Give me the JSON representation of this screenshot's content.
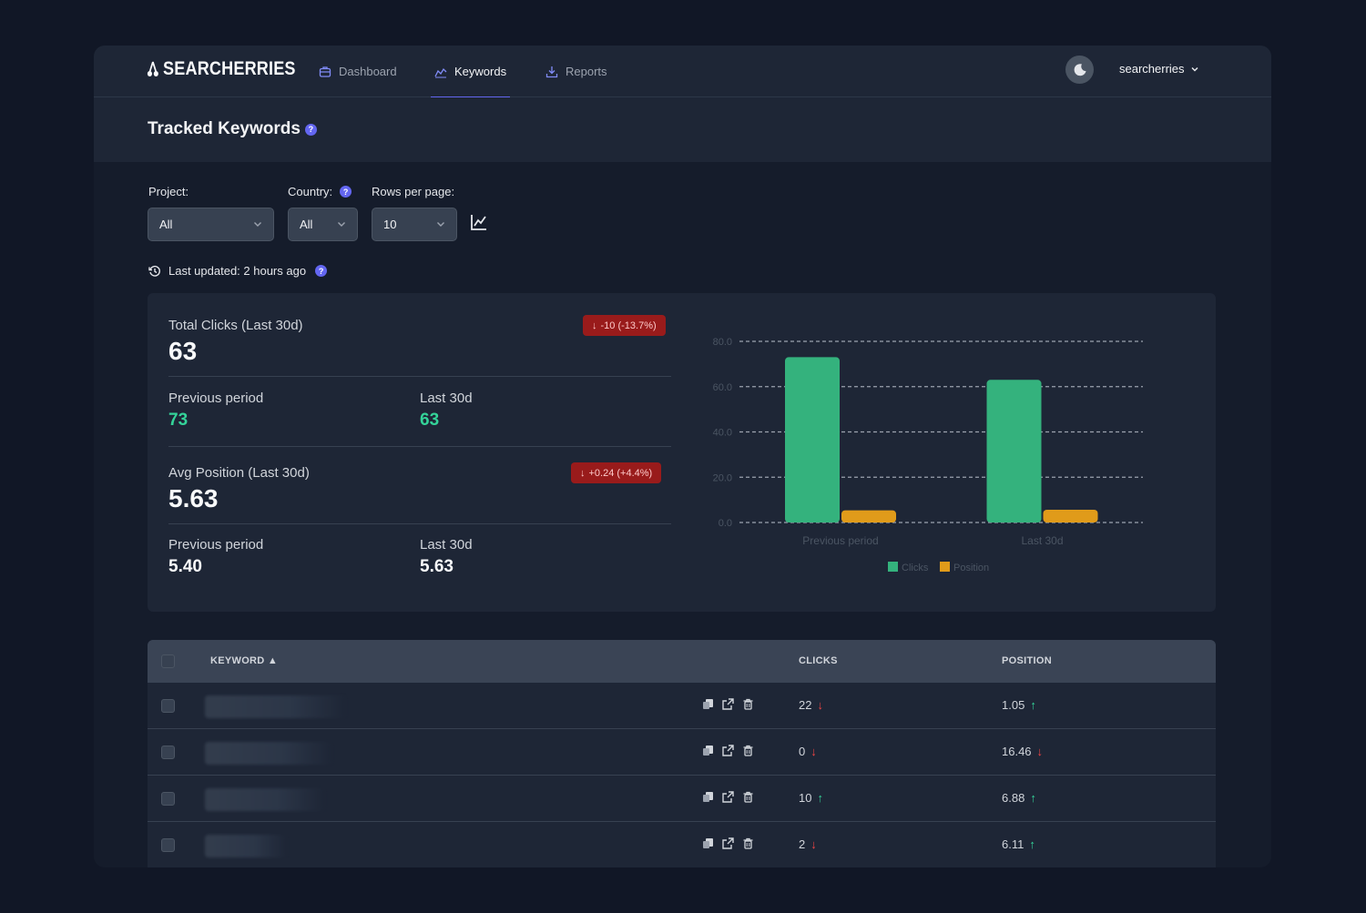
{
  "app": {
    "brand": "SEARCHERRIES",
    "nav": [
      {
        "label": "Dashboard",
        "icon": "briefcase-icon",
        "active": false
      },
      {
        "label": "Keywords",
        "icon": "trend-chart-icon",
        "active": true
      },
      {
        "label": "Reports",
        "icon": "download-tray-icon",
        "active": false
      }
    ],
    "user": {
      "name": "searcherries",
      "theme_icon": "moon-icon"
    }
  },
  "page": {
    "title": "Tracked Keywords",
    "help": "?"
  },
  "filters": {
    "project": {
      "label": "Project:",
      "value": "All"
    },
    "country": {
      "label": "Country:",
      "value": "All"
    },
    "rows": {
      "label": "Rows per page:",
      "value": "10"
    },
    "last_updated": "Last updated: 2 hours ago"
  },
  "stats": {
    "clicks": {
      "title": "Total Clicks (Last 30d)",
      "value": "63",
      "delta": "-10 (-13.7%)",
      "prev_label": "Previous period",
      "prev_value": "73",
      "last_label": "Last 30d",
      "last_value": "63"
    },
    "position": {
      "title": "Avg Position (Last 30d)",
      "value": "5.63",
      "delta": "+0.24 (+4.4%)",
      "prev_label": "Previous period",
      "prev_value": "5.40",
      "last_label": "Last 30d",
      "last_value": "5.63"
    }
  },
  "chart_data": {
    "type": "bar",
    "categories": [
      "Previous period",
      "Last 30d"
    ],
    "series": [
      {
        "name": "Clicks",
        "values": [
          73,
          63
        ],
        "color": "#34b27d"
      },
      {
        "name": "Position",
        "values": [
          5.4,
          5.63
        ],
        "color": "#e09b1a"
      }
    ],
    "yticks": [
      "0.0",
      "20.0",
      "40.0",
      "60.0",
      "80.0"
    ],
    "ylim": [
      0,
      80
    ],
    "grid": true,
    "legend": "bottom"
  },
  "table": {
    "headers": {
      "keyword": "KEYWORD ▲",
      "clicks": "CLICKS",
      "position": "POSITION"
    },
    "rows": [
      {
        "clicks": "22",
        "clicks_trend": "down",
        "position": "1.05",
        "position_trend": "up"
      },
      {
        "clicks": "0",
        "clicks_trend": "down",
        "position": "16.46",
        "position_trend": "down"
      },
      {
        "clicks": "10",
        "clicks_trend": "up",
        "position": "6.88",
        "position_trend": "up"
      },
      {
        "clicks": "2",
        "clicks_trend": "down",
        "position": "6.11",
        "position_trend": "up"
      }
    ],
    "arrows": {
      "up": "↑",
      "down": "↓"
    }
  },
  "colors": {
    "accent": "#6366f1",
    "clicks": "#34b27d",
    "position": "#e09b1a",
    "negative_badge": "#991b1b",
    "positive_text": "#34d399"
  }
}
